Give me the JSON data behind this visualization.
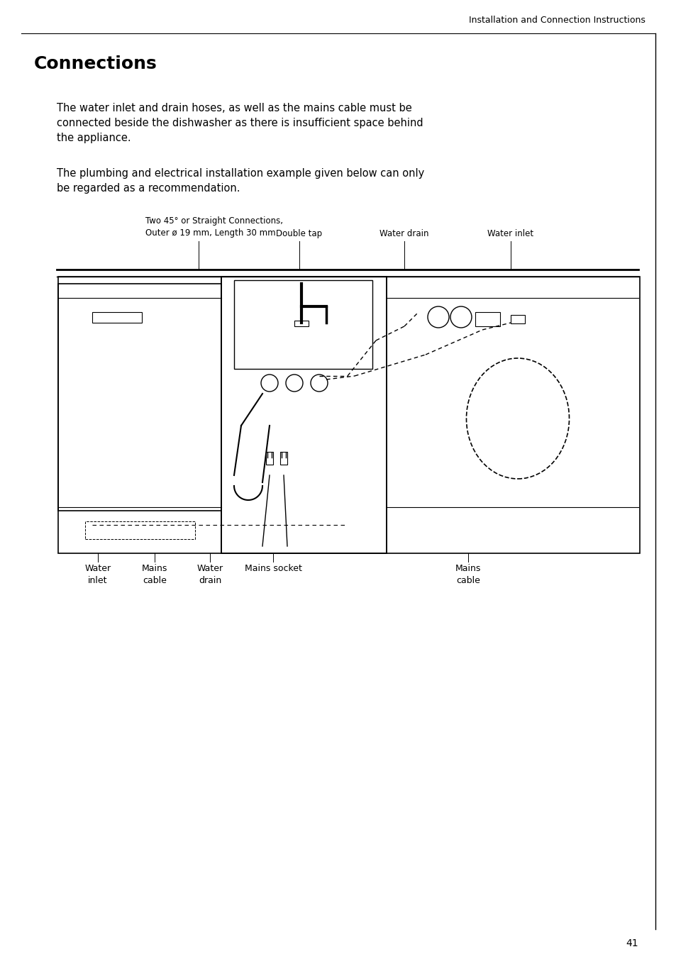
{
  "page_title": "Installation and Connection Instructions",
  "section_title": "Connections",
  "para1": "The water inlet and drain hoses, as well as the mains cable must be\nconnected beside the dishwasher as there is insufficient space behind\nthe appliance.",
  "para2": "The plumbing and electrical installation example given below can only\nbe regarded as a recommendation.",
  "label_top_left": "Two 45° or Straight Connections,\nOuter ø 19 mm, Length 30 mm",
  "label_double_tap": "Double tap",
  "label_water_drain_top": "Water drain",
  "label_water_inlet_top": "Water inlet",
  "label_water_inlet_bot": "Water\ninlet",
  "label_mains_cable1": "Mains\ncable",
  "label_water_drain_bot": "Water\ndrain",
  "label_mains_socket": "Mains socket",
  "label_mains_cable2": "Mains\ncable",
  "page_number": "41",
  "bg_color": "#ffffff",
  "line_color": "#000000",
  "text_color": "#000000",
  "border_color": "#000000"
}
